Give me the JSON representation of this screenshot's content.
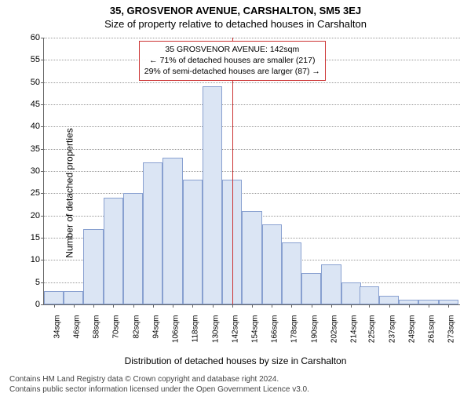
{
  "title_line1": "35, GROSVENOR AVENUE, CARSHALTON, SM5 3EJ",
  "title_line2": "Size of property relative to detached houses in Carshalton",
  "y_axis_label": "Number of detached properties",
  "x_axis_label": "Distribution of detached houses by size in Carshalton",
  "footer_line1": "Contains HM Land Registry data © Crown copyright and database right 2024.",
  "footer_line2": "Contains public sector information licensed under the Open Government Licence v3.0.",
  "annotation": {
    "line1": "35 GROSVENOR AVENUE: 142sqm",
    "line2": "← 71% of detached houses are smaller (217)",
    "line3": "29% of semi-detached houses are larger (87) →"
  },
  "chart": {
    "type": "histogram",
    "background_color": "#ffffff",
    "grid_color": "#999999",
    "axis_color": "#666666",
    "bar_fill": "#dbe5f4",
    "bar_border": "#88a0d0",
    "marker_line_color": "#cc3333",
    "annotation_border": "#cc3333",
    "ylim": [
      0,
      60
    ],
    "ytick_step": 5,
    "marker_x_value": 142,
    "x_start": 28,
    "x_end": 280,
    "bar_width_value": 12,
    "categories": [
      "34sqm",
      "46sqm",
      "58sqm",
      "70sqm",
      "82sqm",
      "94sqm",
      "106sqm",
      "118sqm",
      "130sqm",
      "142sqm",
      "154sqm",
      "166sqm",
      "178sqm",
      "190sqm",
      "202sqm",
      "214sqm",
      "225sqm",
      "237sqm",
      "249sqm",
      "261sqm",
      "273sqm"
    ],
    "values": [
      3,
      3,
      17,
      24,
      25,
      32,
      33,
      28,
      49,
      28,
      21,
      18,
      14,
      7,
      9,
      5,
      4,
      2,
      1,
      1,
      1
    ]
  }
}
